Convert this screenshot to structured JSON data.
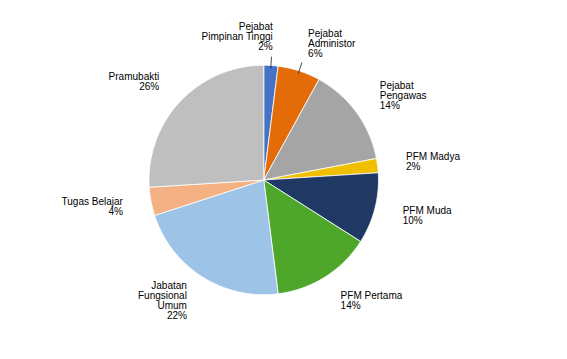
{
  "chart_data": {
    "type": "pie",
    "categories": [
      "Pejabat\nPimpinan Tinggi",
      "Pejabat\nAdministor",
      "Pejabat\nPengawas",
      "PFM Madya",
      "PFM Muda",
      "PFM Pertama",
      "Jabatan\nFungsional\nUmum",
      "Tugas Belajar",
      "Pramubakti"
    ],
    "values": [
      2,
      6,
      14,
      2,
      10,
      14,
      22,
      4,
      26
    ],
    "value_labels": [
      "2%",
      "6%",
      "14%",
      "2%",
      "10%",
      "14%",
      "22%",
      "4%",
      "26%"
    ],
    "colors": [
      "#4472C4",
      "#E36C09",
      "#A5A5A5",
      "#F0C000",
      "#1F3864",
      "#4EA72A",
      "#9DC3E6",
      "#F4B183",
      "#BFBFBF"
    ],
    "data_labels": true
  }
}
